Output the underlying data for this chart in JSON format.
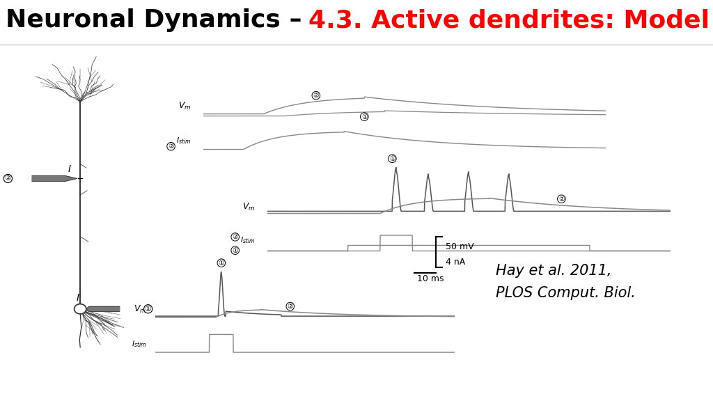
{
  "title_black": "Neuronal Dynamics – ",
  "title_red": "4.3. Active dendrites: Model",
  "title_fontsize": 26,
  "bg_color": "#ffffff",
  "line_color": "#888888",
  "line_color2": "#555555",
  "citation": "Hay et al. 2011,\nPLOS Comput. Biol.",
  "citation_fontsize": 15,
  "neuron_color": "#333333",
  "electrode_color": "#777777"
}
